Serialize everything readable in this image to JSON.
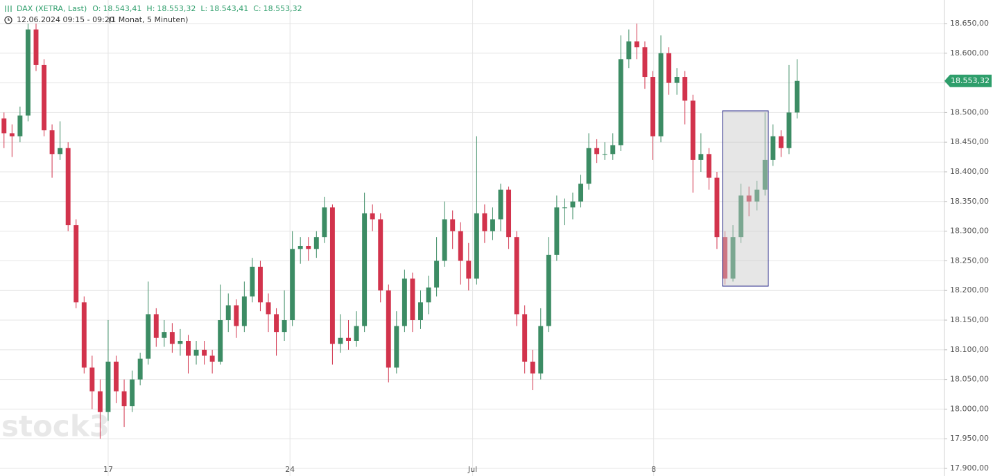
{
  "chart_data": {
    "type": "candlestick",
    "title": "DAX (XETRA, Last)",
    "header_values": [
      {
        "label": "O:",
        "value": "18.543,41"
      },
      {
        "label": "H:",
        "value": "18.553,32"
      },
      {
        "label": "L:",
        "value": "18.543,41"
      },
      {
        "label": "C:",
        "value": "18.553,32"
      }
    ],
    "time_range": "12.06.2024 09:15 - 09:20",
    "interval": "(1 Monat, 5 Minuten)",
    "watermark": "stock3",
    "up_color": "#3c8c64",
    "down_color": "#d2334c",
    "last_price": {
      "value": 18553.32,
      "label": "18.553,32"
    },
    "last_price_color": "#2e9e6b",
    "grid": true,
    "xlim": [
      -0.5,
      117.4
    ],
    "xticks": [
      {
        "value": 13.0,
        "label": "17"
      },
      {
        "value": 35.7,
        "label": "24"
      },
      {
        "value": 58.5,
        "label": "Jul"
      },
      {
        "value": 81.1,
        "label": "8"
      }
    ],
    "ylim": [
      17887.2,
      18689.7
    ],
    "yticks": [
      {
        "value": 17900,
        "label": "17.900,00"
      },
      {
        "value": 17950,
        "label": "17.950,00"
      },
      {
        "value": 18000,
        "label": "18.000,00"
      },
      {
        "value": 18050,
        "label": "18.050,00"
      },
      {
        "value": 18100,
        "label": "18.100,00"
      },
      {
        "value": 18150,
        "label": "18.150,00"
      },
      {
        "value": 18200,
        "label": "18.200,00"
      },
      {
        "value": 18250,
        "label": "18.250,00"
      },
      {
        "value": 18300,
        "label": "18.300,00"
      },
      {
        "value": 18350,
        "label": "18.350,00"
      },
      {
        "value": 18400,
        "label": "18.400,00"
      },
      {
        "value": 18450,
        "label": "18.450,00"
      },
      {
        "value": 18500,
        "label": "18.500,00"
      },
      {
        "value": 18550,
        "label": "18.550,00"
      },
      {
        "value": 18600,
        "label": "18.600,00"
      },
      {
        "value": 18650,
        "label": "18.650,00"
      }
    ],
    "ohlc": [
      [
        18490,
        18500,
        18440,
        18465
      ],
      [
        18465,
        18480,
        18425,
        18460
      ],
      [
        18460,
        18510,
        18450,
        18495
      ],
      [
        18495,
        18650,
        18485,
        18640
      ],
      [
        18640,
        18650,
        18570,
        18580
      ],
      [
        18580,
        18590,
        18460,
        18470
      ],
      [
        18470,
        18480,
        18390,
        18430
      ],
      [
        18430,
        18485,
        18420,
        18440
      ],
      [
        18440,
        18450,
        18300,
        18310
      ],
      [
        18310,
        18320,
        18170,
        18180
      ],
      [
        18180,
        18190,
        18060,
        18070
      ],
      [
        18070,
        18090,
        18000,
        18030
      ],
      [
        18030,
        18050,
        17950,
        17995
      ],
      [
        17995,
        18150,
        17980,
        18080
      ],
      [
        18080,
        18090,
        18010,
        18030
      ],
      [
        18030,
        18050,
        17970,
        18005
      ],
      [
        18005,
        18065,
        17995,
        18050
      ],
      [
        18050,
        18095,
        18040,
        18085
      ],
      [
        18085,
        18215,
        18075,
        18160
      ],
      [
        18160,
        18170,
        18105,
        18120
      ],
      [
        18120,
        18150,
        18105,
        18130
      ],
      [
        18130,
        18145,
        18095,
        18110
      ],
      [
        18110,
        18135,
        18090,
        18115
      ],
      [
        18115,
        18125,
        18060,
        18090
      ],
      [
        18090,
        18115,
        18075,
        18100
      ],
      [
        18100,
        18115,
        18075,
        18090
      ],
      [
        18090,
        18100,
        18060,
        18080
      ],
      [
        18080,
        18210,
        18075,
        18150
      ],
      [
        18150,
        18195,
        18130,
        18175
      ],
      [
        18175,
        18185,
        18120,
        18140
      ],
      [
        18140,
        18215,
        18130,
        18190
      ],
      [
        18190,
        18255,
        18180,
        18240
      ],
      [
        18240,
        18250,
        18165,
        18180
      ],
      [
        18180,
        18195,
        18130,
        18160
      ],
      [
        18160,
        18170,
        18090,
        18130
      ],
      [
        18130,
        18200,
        18115,
        18150
      ],
      [
        18150,
        18300,
        18140,
        18270
      ],
      [
        18270,
        18290,
        18245,
        18275
      ],
      [
        18275,
        18290,
        18250,
        18270
      ],
      [
        18270,
        18300,
        18255,
        18290
      ],
      [
        18290,
        18358,
        18280,
        18340
      ],
      [
        18340,
        18345,
        18075,
        18110
      ],
      [
        18110,
        18160,
        18095,
        18120
      ],
      [
        18120,
        18150,
        18100,
        18115
      ],
      [
        18115,
        18165,
        18105,
        18140
      ],
      [
        18140,
        18365,
        18130,
        18330
      ],
      [
        18330,
        18345,
        18300,
        18320
      ],
      [
        18320,
        18330,
        18180,
        18200
      ],
      [
        18200,
        18210,
        18045,
        18070
      ],
      [
        18070,
        18165,
        18060,
        18140
      ],
      [
        18140,
        18235,
        18130,
        18220
      ],
      [
        18220,
        18230,
        18130,
        18150
      ],
      [
        18150,
        18200,
        18135,
        18180
      ],
      [
        18180,
        18225,
        18160,
        18205
      ],
      [
        18205,
        18290,
        18190,
        18250
      ],
      [
        18250,
        18350,
        18240,
        18320
      ],
      [
        18320,
        18335,
        18270,
        18300
      ],
      [
        18300,
        18315,
        18210,
        18250
      ],
      [
        18250,
        18280,
        18200,
        18220
      ],
      [
        18220,
        18460,
        18210,
        18330
      ],
      [
        18330,
        18345,
        18280,
        18300
      ],
      [
        18300,
        18340,
        18285,
        18320
      ],
      [
        18320,
        18380,
        18300,
        18370
      ],
      [
        18370,
        18375,
        18270,
        18290
      ],
      [
        18290,
        18300,
        18140,
        18160
      ],
      [
        18160,
        18175,
        18060,
        18080
      ],
      [
        18080,
        18100,
        18032,
        18060
      ],
      [
        18060,
        18170,
        18050,
        18140
      ],
      [
        18140,
        18290,
        18130,
        18260
      ],
      [
        18260,
        18360,
        18250,
        18340
      ],
      [
        18340,
        18355,
        18310,
        18340
      ],
      [
        18340,
        18365,
        18320,
        18350
      ],
      [
        18350,
        18395,
        18340,
        18380
      ],
      [
        18380,
        18465,
        18370,
        18440
      ],
      [
        18440,
        18455,
        18415,
        18430
      ],
      [
        18430,
        18450,
        18420,
        18430
      ],
      [
        18430,
        18465,
        18420,
        18445
      ],
      [
        18445,
        18630,
        18435,
        18590
      ],
      [
        18590,
        18640,
        18575,
        18620
      ],
      [
        18620,
        18650,
        18590,
        18610
      ],
      [
        18610,
        18620,
        18540,
        18560
      ],
      [
        18560,
        18570,
        18420,
        18460
      ],
      [
        18460,
        18630,
        18450,
        18600
      ],
      [
        18600,
        18610,
        18530,
        18550
      ],
      [
        18550,
        18575,
        18530,
        18560
      ],
      [
        18560,
        18570,
        18480,
        18520
      ],
      [
        18520,
        18530,
        18365,
        18420
      ],
      [
        18420,
        18465,
        18400,
        18430
      ],
      [
        18430,
        18440,
        18370,
        18390
      ],
      [
        18390,
        18400,
        18270,
        18290
      ],
      [
        18290,
        18300,
        18210,
        18220
      ],
      [
        18220,
        18310,
        18215,
        18290
      ],
      [
        18290,
        18380,
        18280,
        18360
      ],
      [
        18360,
        18375,
        18325,
        18350
      ],
      [
        18350,
        18385,
        18335,
        18370
      ],
      [
        18370,
        18500,
        18360,
        18420
      ],
      [
        18420,
        18480,
        18410,
        18460
      ],
      [
        18460,
        18470,
        18425,
        18440
      ],
      [
        18440,
        18580,
        18430,
        18500
      ],
      [
        18500,
        18590,
        18490,
        18553.32
      ]
    ]
  }
}
